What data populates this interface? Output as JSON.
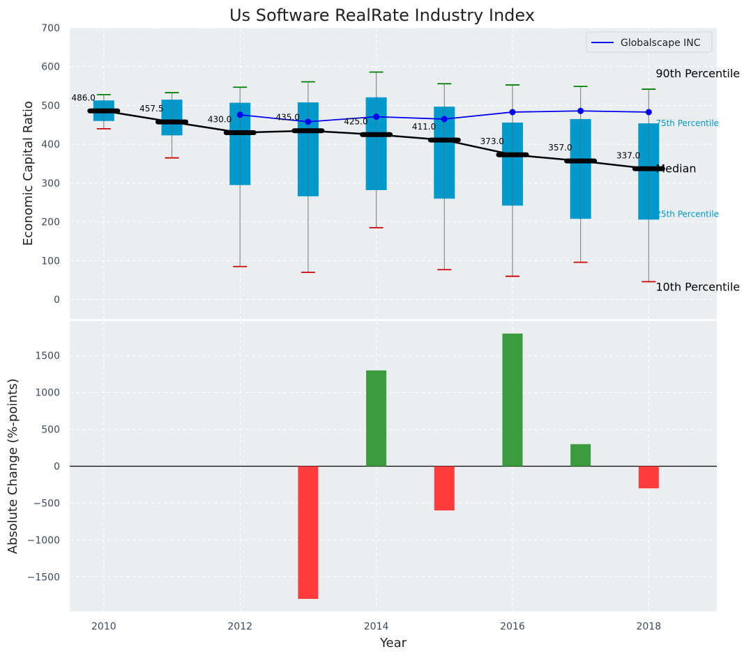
{
  "chart_data": [
    {
      "type": "box",
      "title": "Us Software RealRate Industry Index",
      "xlabel": "",
      "ylabel": "Economic Capital Ratio",
      "ylim": [
        -50,
        700
      ],
      "yticks": [
        0,
        100,
        200,
        300,
        400,
        500,
        600,
        700
      ],
      "xlim": [
        2009.5,
        2019
      ],
      "years": [
        2010,
        2011,
        2012,
        2013,
        2014,
        2015,
        2016,
        2017,
        2018
      ],
      "p10": [
        440,
        365,
        85,
        70,
        185,
        77,
        60,
        96,
        46
      ],
      "p25": [
        460,
        423,
        295,
        266,
        282,
        260,
        242,
        208,
        206
      ],
      "median": [
        486,
        457.5,
        430,
        435,
        425,
        411,
        373,
        357,
        337
      ],
      "median_labels": [
        "486.0",
        "457.5",
        "430.0",
        "435.0",
        "425.0",
        "411.0",
        "373.0",
        "357.0",
        "337.0"
      ],
      "p75": [
        513,
        515,
        507,
        508,
        521,
        497,
        456,
        465,
        454
      ],
      "p90": [
        528,
        533,
        547,
        561,
        586,
        556,
        553,
        549,
        542
      ],
      "company": {
        "name": "Globalscape INC",
        "years": [
          2012,
          2013,
          2014,
          2015,
          2016,
          2017,
          2018
        ],
        "values": [
          476,
          458,
          471,
          465,
          483,
          486,
          483
        ]
      },
      "annotations": {
        "p90": "90th Percentile",
        "p75": "75th Percentile",
        "median": "Median",
        "p25": "25th Percentile",
        "p10": "10th Percentile"
      },
      "legend": {
        "label": "Globalscape INC",
        "position": "top-right"
      },
      "colors": {
        "box": "#0099cc",
        "median": "#000000",
        "company": "#0000ee",
        "p90_cap": "#008000",
        "p10_cap": "#cc0000",
        "whisker": "#8a8a8a"
      }
    },
    {
      "type": "bar",
      "title": "",
      "xlabel": "Year",
      "ylabel": "Absolute Change (%-points)",
      "ylim": [
        -1970,
        1970
      ],
      "yticks": [
        -1500,
        -1000,
        -500,
        0,
        500,
        1000,
        1500
      ],
      "ytick_labels": [
        "−1500",
        "−1000",
        "−500",
        "0",
        "500",
        "1000",
        "1500"
      ],
      "xticks": [
        2010,
        2012,
        2014,
        2016,
        2018
      ],
      "years": [
        2013,
        2014,
        2015,
        2016,
        2017,
        2018
      ],
      "values": [
        -1800,
        1300,
        -600,
        1800,
        300,
        -300
      ],
      "colors": {
        "positive": "#3a9c3e",
        "negative": "#ff3c3c"
      }
    }
  ]
}
